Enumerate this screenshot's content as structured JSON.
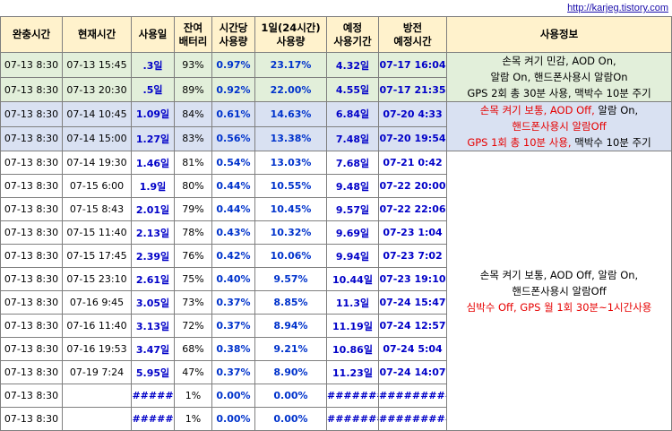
{
  "url": "http://karjeg.tistory.com",
  "headers": {
    "charge_done": "완충시간",
    "current": "현재시간",
    "used_days": "사용일",
    "battery": [
      "잔여",
      "배터리"
    ],
    "per_hour": [
      "시간당",
      "사용량"
    ],
    "per_day": [
      "1일(24시간)",
      "사용량"
    ],
    "expected": [
      "예정",
      "사용기간"
    ],
    "discharge": [
      "방전",
      "예정시간"
    ],
    "info": "사용정보"
  },
  "rows": [
    {
      "charge": "07-13 8:30",
      "current": "07-13 15:45",
      "days": ".3일",
      "battery": "93%",
      "hourly": "0.97%",
      "daily": "23.17%",
      "expected": "4.32일",
      "discharge": "07-17 16:04",
      "group": "green"
    },
    {
      "charge": "07-13 8:30",
      "current": "07-13 20:30",
      "days": ".5일",
      "battery": "89%",
      "hourly": "0.92%",
      "daily": "22.00%",
      "expected": "4.55일",
      "discharge": "07-17 21:35",
      "group": "green"
    },
    {
      "charge": "07-13 8:30",
      "current": "07-14 10:45",
      "days": "1.09일",
      "battery": "84%",
      "hourly": "0.61%",
      "daily": "14.63%",
      "expected": "6.84일",
      "discharge": "07-20 4:33",
      "group": "purple"
    },
    {
      "charge": "07-13 8:30",
      "current": "07-14 15:00",
      "days": "1.27일",
      "battery": "83%",
      "hourly": "0.56%",
      "daily": "13.38%",
      "expected": "7.48일",
      "discharge": "07-20 19:54",
      "group": "purple"
    },
    {
      "charge": "07-13 8:30",
      "current": "07-14 19:30",
      "days": "1.46일",
      "battery": "81%",
      "hourly": "0.54%",
      "daily": "13.03%",
      "expected": "7.68일",
      "discharge": "07-21 0:42",
      "group": "white"
    },
    {
      "charge": "07-13 8:30",
      "current": "07-15 6:00",
      "days": "1.9일",
      "battery": "80%",
      "hourly": "0.44%",
      "daily": "10.55%",
      "expected": "9.48일",
      "discharge": "07-22 20:00",
      "group": "white"
    },
    {
      "charge": "07-13 8:30",
      "current": "07-15 8:43",
      "days": "2.01일",
      "battery": "79%",
      "hourly": "0.44%",
      "daily": "10.45%",
      "expected": "9.57일",
      "discharge": "07-22 22:06",
      "group": "white"
    },
    {
      "charge": "07-13 8:30",
      "current": "07-15 11:40",
      "days": "2.13일",
      "battery": "78%",
      "hourly": "0.43%",
      "daily": "10.32%",
      "expected": "9.69일",
      "discharge": "07-23 1:04",
      "group": "white"
    },
    {
      "charge": "07-13 8:30",
      "current": "07-15 17:45",
      "days": "2.39일",
      "battery": "76%",
      "hourly": "0.42%",
      "daily": "10.06%",
      "expected": "9.94일",
      "discharge": "07-23 7:02",
      "group": "white"
    },
    {
      "charge": "07-13 8:30",
      "current": "07-15 23:10",
      "days": "2.61일",
      "battery": "75%",
      "hourly": "0.40%",
      "daily": "9.57%",
      "expected": "10.44일",
      "discharge": "07-23 19:10",
      "group": "white"
    },
    {
      "charge": "07-13 8:30",
      "current": "07-16 9:45",
      "days": "3.05일",
      "battery": "73%",
      "hourly": "0.37%",
      "daily": "8.85%",
      "expected": "11.3일",
      "discharge": "07-24 15:47",
      "group": "white"
    },
    {
      "charge": "07-13 8:30",
      "current": "07-16 11:40",
      "days": "3.13일",
      "battery": "72%",
      "hourly": "0.37%",
      "daily": "8.94%",
      "expected": "11.19일",
      "discharge": "07-24 12:57",
      "group": "white"
    },
    {
      "charge": "07-13 8:30",
      "current": "07-16 19:53",
      "days": "3.47일",
      "battery": "68%",
      "hourly": "0.38%",
      "daily": "9.21%",
      "expected": "10.86일",
      "discharge": "07-24 5:04",
      "group": "white"
    },
    {
      "charge": "07-13 8:30",
      "current": "07-19 7:24",
      "days": "5.95일",
      "battery": "47%",
      "hourly": "0.37%",
      "daily": "8.90%",
      "expected": "11.23일",
      "discharge": "07-24 14:07",
      "group": "white"
    },
    {
      "charge": "07-13 8:30",
      "current": "",
      "days": "#####",
      "battery": "1%",
      "hourly": "0.00%",
      "daily": "0.00%",
      "expected": "#######",
      "discharge": "##########",
      "group": "white"
    },
    {
      "charge": "07-13 8:30",
      "current": "",
      "days": "#####",
      "battery": "1%",
      "hourly": "0.00%",
      "daily": "0.00%",
      "expected": "#######",
      "discharge": "##########",
      "group": "white"
    }
  ],
  "info": {
    "green": [
      "손목 켜기 민감, AOD On,",
      "알람 On, 핸드폰사용시 알람On",
      "GPS 2회 총 30분 사용, 맥박수 10분 주기"
    ],
    "purple": {
      "line1_red": "손목 켜기 보통, AOD Off,",
      "line1_black": " 알람 On,",
      "line2_red": "핸드폰사용시 알람Off",
      "line3_red": "GPS 1회 총 10분 사용,",
      "line3_black": " 맥박수 10분 주기"
    },
    "white": [
      "손목 켜기 보통, AOD Off, 알람 On,",
      "핸드폰사용시 알람Off"
    ],
    "white_red": "심박수 Off, GPS 월 1회 30분~1시간사용"
  },
  "colors": {
    "header_bg": "#fff2cc",
    "green_bg": "#e2efda",
    "purple_bg": "#d9e1f2",
    "value_blue": "#0000c8",
    "highlight_red": "#e60000"
  }
}
